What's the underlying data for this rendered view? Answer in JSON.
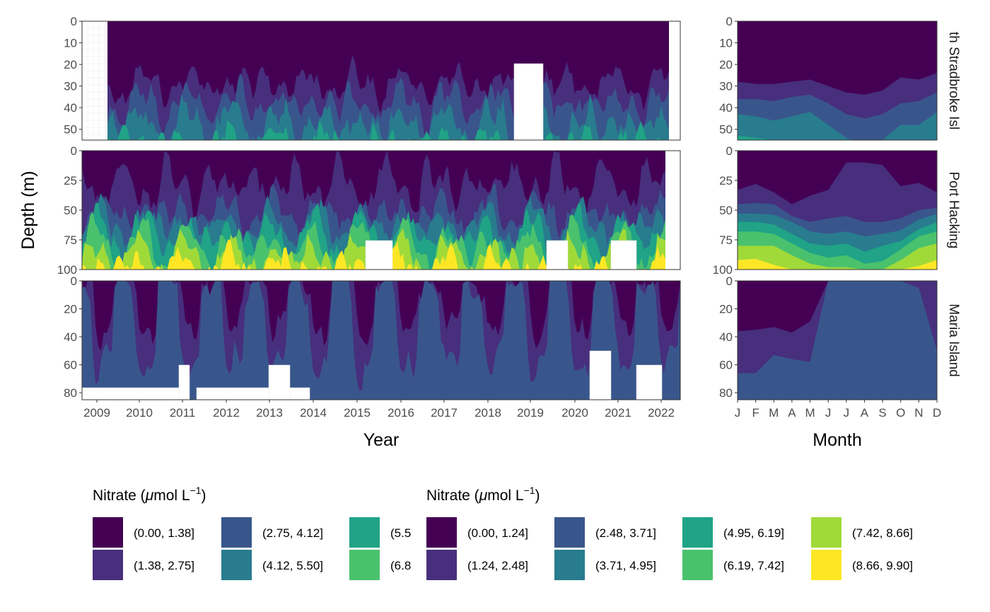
{
  "chart_data": {
    "type": "heatmap",
    "description_fields": {
      "left_xlabel": "Year",
      "right_xlabel": "Month",
      "ylabel": "Depth (m)"
    },
    "x_years": [
      "2009",
      "2010",
      "2011",
      "2012",
      "2013",
      "2014",
      "2015",
      "2016",
      "2017",
      "2018",
      "2019",
      "2020",
      "2021",
      "2022"
    ],
    "x_months": [
      "J",
      "F",
      "M",
      "A",
      "M",
      "J",
      "J",
      "A",
      "S",
      "O",
      "N",
      "D"
    ],
    "facets": [
      {
        "name": "North Stradbroke Island",
        "label_shown": "th Stradbroke Isl",
        "depth_ticks": [
          "0",
          "10",
          "20",
          "30",
          "40",
          "50"
        ],
        "ylim": [
          0,
          55
        ],
        "legend": 1
      },
      {
        "name": "Port Hacking",
        "label_shown": "Port Hacking",
        "depth_ticks": [
          "0",
          "25",
          "50",
          "75",
          "100"
        ],
        "ylim": [
          0,
          100
        ],
        "legend": 2
      },
      {
        "name": "Maria Island",
        "label_shown": "Maria Island",
        "depth_ticks": [
          "0",
          "20",
          "40",
          "60",
          "80"
        ],
        "ylim": [
          0,
          85
        ],
        "legend": 1
      }
    ],
    "climatology_bands": [
      {
        "facet": "North Stradbroke Island",
        "layers": [
          {
            "class": 1,
            "depth_by_month": [
              28,
              29,
              29,
              28,
              27,
              30,
              33,
              34,
              32,
              26,
              27,
              24
            ]
          },
          {
            "class": 2,
            "depth_by_month": [
              36,
              36,
              37,
              35,
              34,
              38,
              43,
              45,
              43,
              38,
              37,
              33
            ]
          },
          {
            "class": 3,
            "depth_by_month": [
              43,
              44,
              46,
              44,
              42,
              48,
              54,
              57,
              55,
              48,
              48,
              42
            ]
          },
          {
            "class": 4,
            "depth_by_month": [
              53,
              54,
              55,
              56,
              55,
              56,
              57,
              58,
              58,
              56,
              56,
              55
            ]
          }
        ]
      },
      {
        "facet": "Port Hacking",
        "layers": [
          {
            "class": 1,
            "depth_by_month": [
              33,
              28,
              35,
              45,
              38,
              33,
              10,
              10,
              12,
              30,
              27,
              35
            ]
          },
          {
            "class": 2,
            "depth_by_month": [
              45,
              44,
              45,
              55,
              60,
              57,
              55,
              60,
              60,
              57,
              50,
              48
            ]
          },
          {
            "class": 3,
            "depth_by_month": [
              53,
              53,
              54,
              60,
              68,
              70,
              68,
              72,
              70,
              67,
              58,
              53
            ]
          },
          {
            "class": 4,
            "depth_by_month": [
              60,
              60,
              62,
              70,
              78,
              80,
              78,
              85,
              80,
              76,
              66,
              60
            ]
          },
          {
            "class": 5,
            "depth_by_month": [
              68,
              68,
              70,
              78,
              86,
              90,
              88,
              95,
              93,
              83,
              72,
              68
            ]
          },
          {
            "class": 6,
            "depth_by_month": [
              80,
              80,
              80,
              88,
              95,
              98,
              98,
              100,
              100,
              92,
              82,
              78
            ]
          },
          {
            "class": 7,
            "depth_by_month": [
              92,
              91,
              96,
              100,
              100,
              100,
              100,
              100,
              100,
              100,
              97,
              92
            ]
          }
        ]
      },
      {
        "facet": "Maria Island",
        "layers": [
          {
            "class": 1,
            "depth_by_month": [
              36,
              35,
              33,
              37,
              29,
              0,
              0,
              0,
              0,
              0,
              0,
              0
            ]
          },
          {
            "class": 2,
            "depth_by_month": [
              66,
              66,
              53,
              56,
              58,
              0,
              0,
              0,
              0,
              0,
              5,
              50
            ]
          }
        ]
      }
    ],
    "legends": [
      {
        "title": "Nitrate (μmol L⁻¹)",
        "title_prefix": "Nitrate (",
        "title_unit": "μ",
        "title_rest": "mol L",
        "title_sup": "−1",
        "title_close": ")",
        "classes": [
          {
            "label": "(0.00, 1.38]",
            "color": "#440154"
          },
          {
            "label": "(1.38, 2.75]",
            "color": "#472F7D"
          },
          {
            "label": "(2.75, 4.12]",
            "color": "#39568C"
          },
          {
            "label": "(4.12, 5.50]",
            "color": "#287C8E"
          },
          {
            "label": "(5.5",
            "color": "#20A386"
          },
          {
            "label": "(6.8",
            "color": "#4AC16D"
          }
        ]
      },
      {
        "title": "Nitrate (μmol L⁻¹)",
        "title_prefix": "Nitrate (",
        "title_unit": "μ",
        "title_rest": "mol L",
        "title_sup": "−1",
        "title_close": ")",
        "classes": [
          {
            "label": "(0.00, 1.24]",
            "color": "#440154"
          },
          {
            "label": "(1.24, 2.48]",
            "color": "#472F7D"
          },
          {
            "label": "(2.48, 3.71]",
            "color": "#39568C"
          },
          {
            "label": "(3.71, 4.95]",
            "color": "#287C8E"
          },
          {
            "label": "(4.95, 6.19]",
            "color": "#20A386"
          },
          {
            "label": "(6.19, 7.42]",
            "color": "#4AC16D"
          },
          {
            "label": "(7.42, 8.66]",
            "color": "#A0DA39"
          },
          {
            "label": "(8.66, 9.90]",
            "color": "#FDE725"
          }
        ]
      }
    ]
  }
}
